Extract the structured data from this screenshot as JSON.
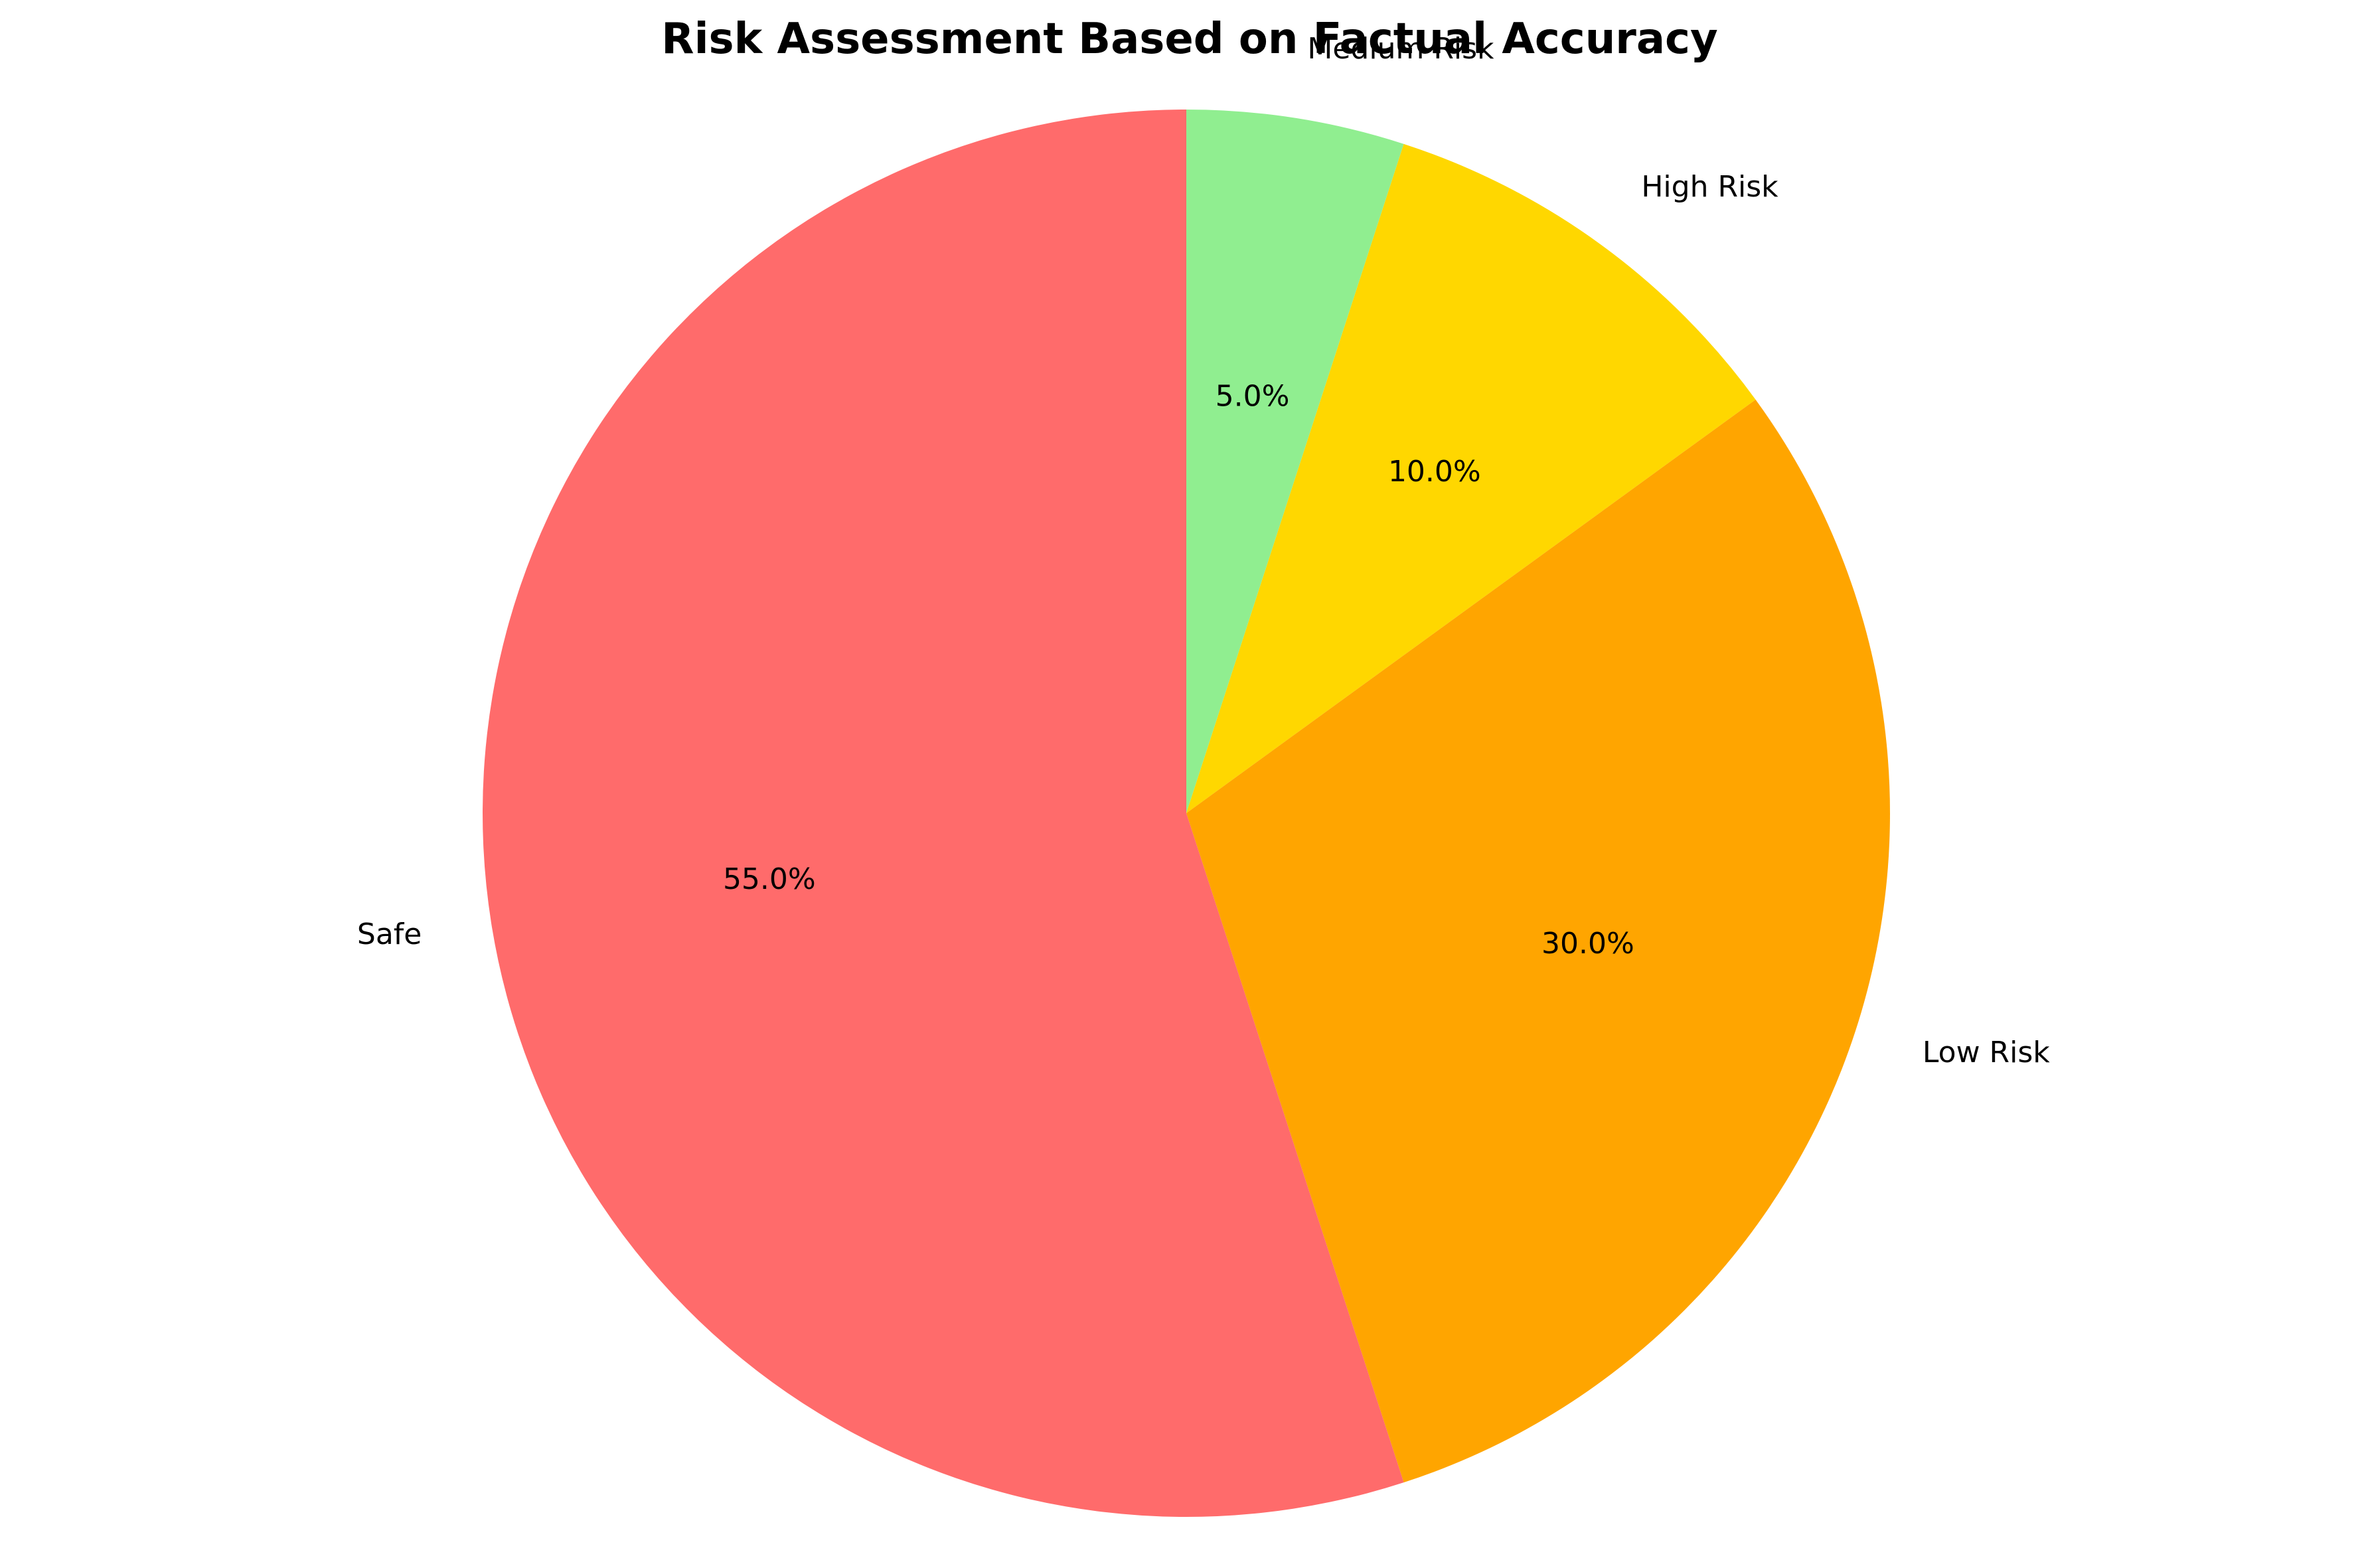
{
  "chart_data": {
    "type": "pie",
    "title": "Risk Assessment Based on Factual Accuracy",
    "start_angle": 90,
    "direction": "clockwise",
    "slices": [
      {
        "label": "Medium Risk",
        "value": 5.0,
        "pct_label": "5.0%",
        "color": "#90EE90"
      },
      {
        "label": "High Risk",
        "value": 10.0,
        "pct_label": "10.0%",
        "color": "#FFD700"
      },
      {
        "label": "Low Risk",
        "value": 30.0,
        "pct_label": "30.0%",
        "color": "#FFA500"
      },
      {
        "label": "Safe",
        "value": 55.0,
        "pct_label": "55.0%",
        "color": "#FF6B6B"
      }
    ]
  }
}
